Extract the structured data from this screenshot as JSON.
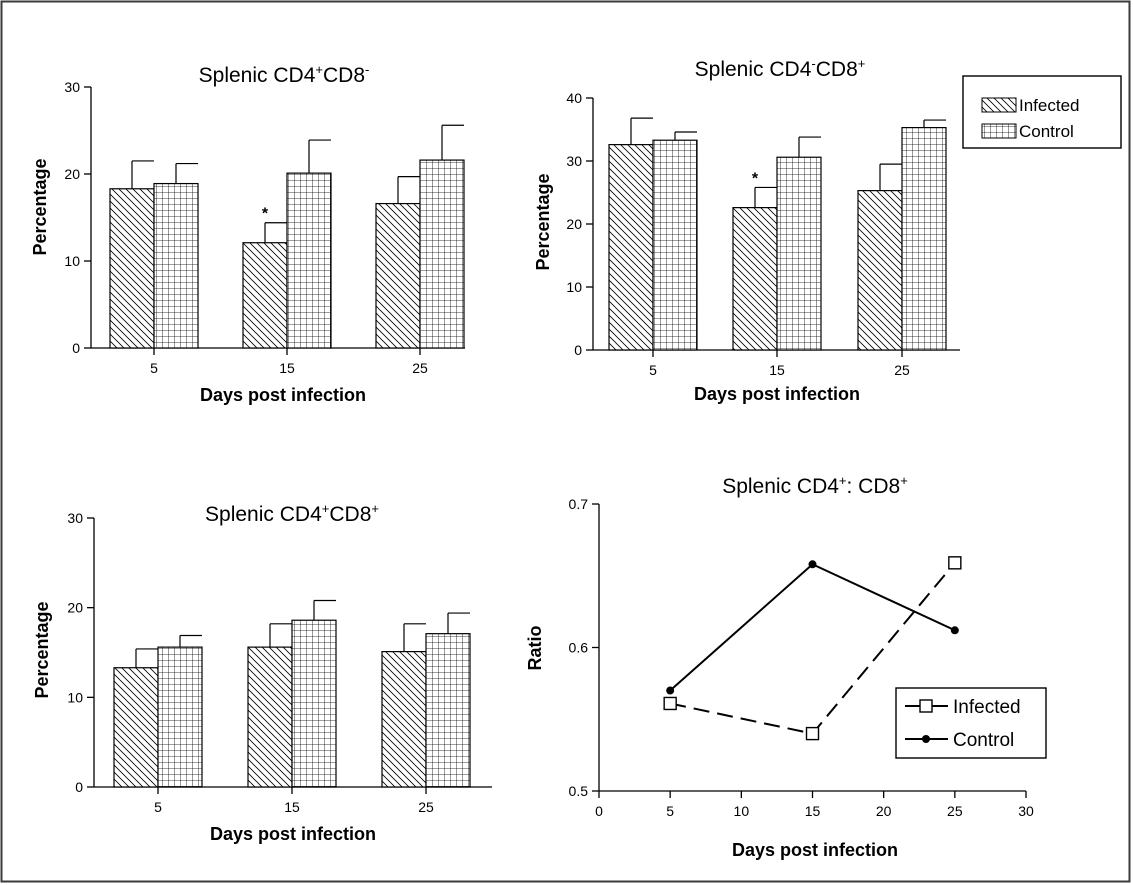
{
  "colors": {
    "background": "#ffffff",
    "ink": "#000000",
    "border": "#3a3a3a"
  },
  "legend_bars": {
    "infected": "Infected",
    "control": "Control"
  },
  "legend_line": {
    "infected": "Infected",
    "control": "Control"
  },
  "chart_data": [
    {
      "type": "bar",
      "title": {
        "pre": "Splenic CD4",
        "s1": "+",
        "mid": "CD8",
        "s2": "-",
        "post": ""
      },
      "xlabel": "Days post infection",
      "ylabel": "Percentage",
      "categories": [
        "5",
        "15",
        "25"
      ],
      "yticks": [
        "0",
        "10",
        "20",
        "30"
      ],
      "ylim": [
        0,
        30
      ],
      "series": [
        {
          "name": "Infected",
          "values": [
            18.3,
            12.1,
            16.6
          ],
          "errors": [
            3.2,
            2.3,
            3.1
          ]
        },
        {
          "name": "Control",
          "values": [
            18.9,
            20.1,
            21.6
          ],
          "errors": [
            2.3,
            3.8,
            4.0
          ]
        }
      ],
      "annotations": [
        {
          "category": "15",
          "series": "Infected",
          "text": "*"
        }
      ],
      "legend": "none"
    },
    {
      "type": "bar",
      "title": {
        "pre": "Splenic CD4",
        "s1": "-",
        "mid": "CD8",
        "s2": "+",
        "post": ""
      },
      "xlabel": "Days post infection",
      "ylabel": "Percentage",
      "categories": [
        "5",
        "15",
        "25"
      ],
      "yticks": [
        "0",
        "10",
        "20",
        "30",
        "40"
      ],
      "ylim": [
        0,
        40
      ],
      "series": [
        {
          "name": "Infected",
          "values": [
            32.6,
            22.6,
            25.3
          ],
          "errors": [
            4.2,
            3.2,
            4.2
          ]
        },
        {
          "name": "Control",
          "values": [
            33.3,
            30.6,
            35.3
          ],
          "errors": [
            1.3,
            3.2,
            1.2
          ]
        }
      ],
      "annotations": [
        {
          "category": "15",
          "series": "Infected",
          "text": "*"
        }
      ],
      "legend": "top-right"
    },
    {
      "type": "bar",
      "title": {
        "pre": "Splenic CD4",
        "s1": "+",
        "mid": "CD8",
        "s2": "+",
        "post": ""
      },
      "xlabel": "Days post infection",
      "ylabel": "Percentage",
      "categories": [
        "5",
        "15",
        "25"
      ],
      "yticks": [
        "0",
        "10",
        "20",
        "30"
      ],
      "ylim": [
        0,
        30
      ],
      "series": [
        {
          "name": "Infected",
          "values": [
            13.3,
            15.6,
            15.1
          ],
          "errors": [
            2.1,
            2.6,
            3.1
          ]
        },
        {
          "name": "Control",
          "values": [
            15.6,
            18.6,
            17.1
          ],
          "errors": [
            1.3,
            2.2,
            2.3
          ]
        }
      ],
      "annotations": [],
      "legend": "none"
    },
    {
      "type": "line",
      "title": {
        "pre": "Splenic CD4",
        "s1": "+",
        "mid": ": CD8",
        "s2": "+",
        "post": ""
      },
      "xlabel": "Days post infection",
      "ylabel": "Ratio",
      "x": [
        5,
        15,
        25
      ],
      "xticks": [
        "0",
        "5",
        "10",
        "15",
        "20",
        "25",
        "30"
      ],
      "yticks": [
        "0.5",
        "0.6",
        "0.7"
      ],
      "xlim": [
        0,
        30
      ],
      "ylim": [
        0.5,
        0.7
      ],
      "series": [
        {
          "name": "Infected",
          "values": [
            0.561,
            0.54,
            0.659
          ],
          "marker": "open-square",
          "dash": "dashed"
        },
        {
          "name": "Control",
          "values": [
            0.57,
            0.658,
            0.612
          ],
          "marker": "filled-circle",
          "dash": "solid"
        }
      ],
      "legend": "bottom-right"
    }
  ]
}
